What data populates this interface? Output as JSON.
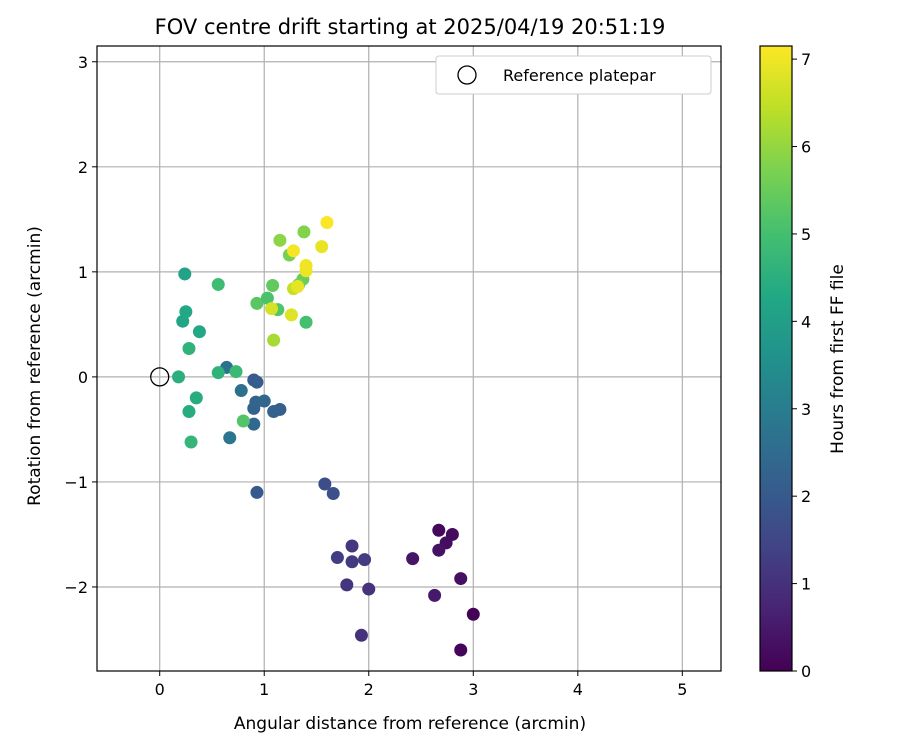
{
  "chart_data": {
    "type": "scatter",
    "title": "FOV centre drift starting at 2025/04/19 20:51:19",
    "xlabel": "Angular distance from reference (arcmin)",
    "ylabel": "Rotation from reference (arcmin)",
    "xlim": [
      -0.6,
      5.37
    ],
    "ylim": [
      -2.8,
      3.15
    ],
    "xticks": [
      0,
      1,
      2,
      3,
      4,
      5
    ],
    "xtick_labels": [
      "0",
      "1",
      "2",
      "3",
      "4",
      "5"
    ],
    "yticks": [
      -2,
      -1,
      0,
      1,
      2,
      3
    ],
    "ytick_labels": [
      "−2",
      "−1",
      "0",
      "1",
      "2",
      "3"
    ],
    "grid": true,
    "legend": {
      "placement": "top-right",
      "entries": [
        {
          "label": "Reference platepar",
          "marker": "open-circle"
        }
      ]
    },
    "reference_point": {
      "x": 0,
      "y": 0
    },
    "colorbar": {
      "label": "Hours from first FF file",
      "range": [
        0,
        7.15
      ],
      "ticks": [
        0,
        1,
        2,
        3,
        4,
        5,
        6,
        7
      ],
      "tick_labels": [
        "0",
        "1",
        "2",
        "3",
        "4",
        "5",
        "6",
        "7"
      ],
      "colormap": "viridis"
    },
    "points": [
      {
        "x": 3.0,
        "y": -2.26,
        "c": 0.05
      },
      {
        "x": 2.88,
        "y": -2.6,
        "c": 0.1
      },
      {
        "x": 2.67,
        "y": -1.46,
        "c": 0.15
      },
      {
        "x": 2.8,
        "y": -1.5,
        "c": 0.2
      },
      {
        "x": 2.74,
        "y": -1.58,
        "c": 0.25
      },
      {
        "x": 2.88,
        "y": -1.92,
        "c": 0.3
      },
      {
        "x": 2.67,
        "y": -1.65,
        "c": 0.35
      },
      {
        "x": 2.42,
        "y": -1.73,
        "c": 0.4
      },
      {
        "x": 2.63,
        "y": -2.08,
        "c": 0.5
      },
      {
        "x": 1.93,
        "y": -2.46,
        "c": 1.0
      },
      {
        "x": 2.0,
        "y": -2.02,
        "c": 1.05
      },
      {
        "x": 1.79,
        "y": -1.98,
        "c": 1.1
      },
      {
        "x": 1.84,
        "y": -1.61,
        "c": 1.15
      },
      {
        "x": 1.84,
        "y": -1.76,
        "c": 1.2
      },
      {
        "x": 1.96,
        "y": -1.74,
        "c": 1.25
      },
      {
        "x": 1.7,
        "y": -1.72,
        "c": 1.3
      },
      {
        "x": 1.58,
        "y": -1.02,
        "c": 1.7
      },
      {
        "x": 1.66,
        "y": -1.11,
        "c": 1.75
      },
      {
        "x": 0.93,
        "y": -1.1,
        "c": 2.0
      },
      {
        "x": 0.9,
        "y": -0.03,
        "c": 2.05
      },
      {
        "x": 0.93,
        "y": -0.05,
        "c": 2.1
      },
      {
        "x": 1.15,
        "y": -0.31,
        "c": 2.15
      },
      {
        "x": 1.09,
        "y": -0.33,
        "c": 2.2
      },
      {
        "x": 0.9,
        "y": -0.3,
        "c": 2.25
      },
      {
        "x": 0.92,
        "y": -0.24,
        "c": 2.3
      },
      {
        "x": 1.0,
        "y": -0.23,
        "c": 2.35
      },
      {
        "x": 0.9,
        "y": -0.45,
        "c": 2.4
      },
      {
        "x": 0.78,
        "y": -0.13,
        "c": 2.6
      },
      {
        "x": 0.64,
        "y": 0.09,
        "c": 2.7
      },
      {
        "x": 0.67,
        "y": -0.58,
        "c": 2.8
      },
      {
        "x": 0.18,
        "y": 0.0,
        "c": 4.5
      },
      {
        "x": 0.22,
        "y": 0.53,
        "c": 4.2
      },
      {
        "x": 0.25,
        "y": 0.62,
        "c": 4.3
      },
      {
        "x": 0.24,
        "y": 0.98,
        "c": 4.1
      },
      {
        "x": 0.38,
        "y": 0.43,
        "c": 4.3
      },
      {
        "x": 0.28,
        "y": 0.27,
        "c": 4.6
      },
      {
        "x": 0.35,
        "y": -0.2,
        "c": 4.4
      },
      {
        "x": 0.28,
        "y": -0.33,
        "c": 4.4
      },
      {
        "x": 0.3,
        "y": -0.62,
        "c": 4.7
      },
      {
        "x": 0.56,
        "y": 0.04,
        "c": 4.6
      },
      {
        "x": 0.73,
        "y": 0.05,
        "c": 4.8
      },
      {
        "x": 0.56,
        "y": 0.88,
        "c": 4.9
      },
      {
        "x": 0.8,
        "y": -0.42,
        "c": 5.2
      },
      {
        "x": 0.93,
        "y": 0.7,
        "c": 5.3
      },
      {
        "x": 1.03,
        "y": 0.75,
        "c": 5.1
      },
      {
        "x": 1.08,
        "y": 0.87,
        "c": 5.4
      },
      {
        "x": 1.13,
        "y": 0.64,
        "c": 5.2
      },
      {
        "x": 1.4,
        "y": 0.52,
        "c": 5.0
      },
      {
        "x": 1.37,
        "y": 0.93,
        "c": 5.5
      },
      {
        "x": 1.33,
        "y": 0.88,
        "c": 5.6
      },
      {
        "x": 1.24,
        "y": 1.16,
        "c": 5.7
      },
      {
        "x": 1.15,
        "y": 1.3,
        "c": 5.9
      },
      {
        "x": 1.38,
        "y": 1.38,
        "c": 5.8
      },
      {
        "x": 1.09,
        "y": 0.35,
        "c": 6.2
      },
      {
        "x": 1.07,
        "y": 0.65,
        "c": 6.7
      },
      {
        "x": 1.26,
        "y": 0.59,
        "c": 6.8
      },
      {
        "x": 1.28,
        "y": 0.84,
        "c": 6.5
      },
      {
        "x": 1.32,
        "y": 0.86,
        "c": 6.9
      },
      {
        "x": 1.4,
        "y": 1.01,
        "c": 6.95
      },
      {
        "x": 1.4,
        "y": 1.06,
        "c": 7.0
      },
      {
        "x": 1.28,
        "y": 1.2,
        "c": 7.05
      },
      {
        "x": 1.55,
        "y": 1.24,
        "c": 6.9
      },
      {
        "x": 1.6,
        "y": 1.47,
        "c": 7.1
      }
    ]
  }
}
